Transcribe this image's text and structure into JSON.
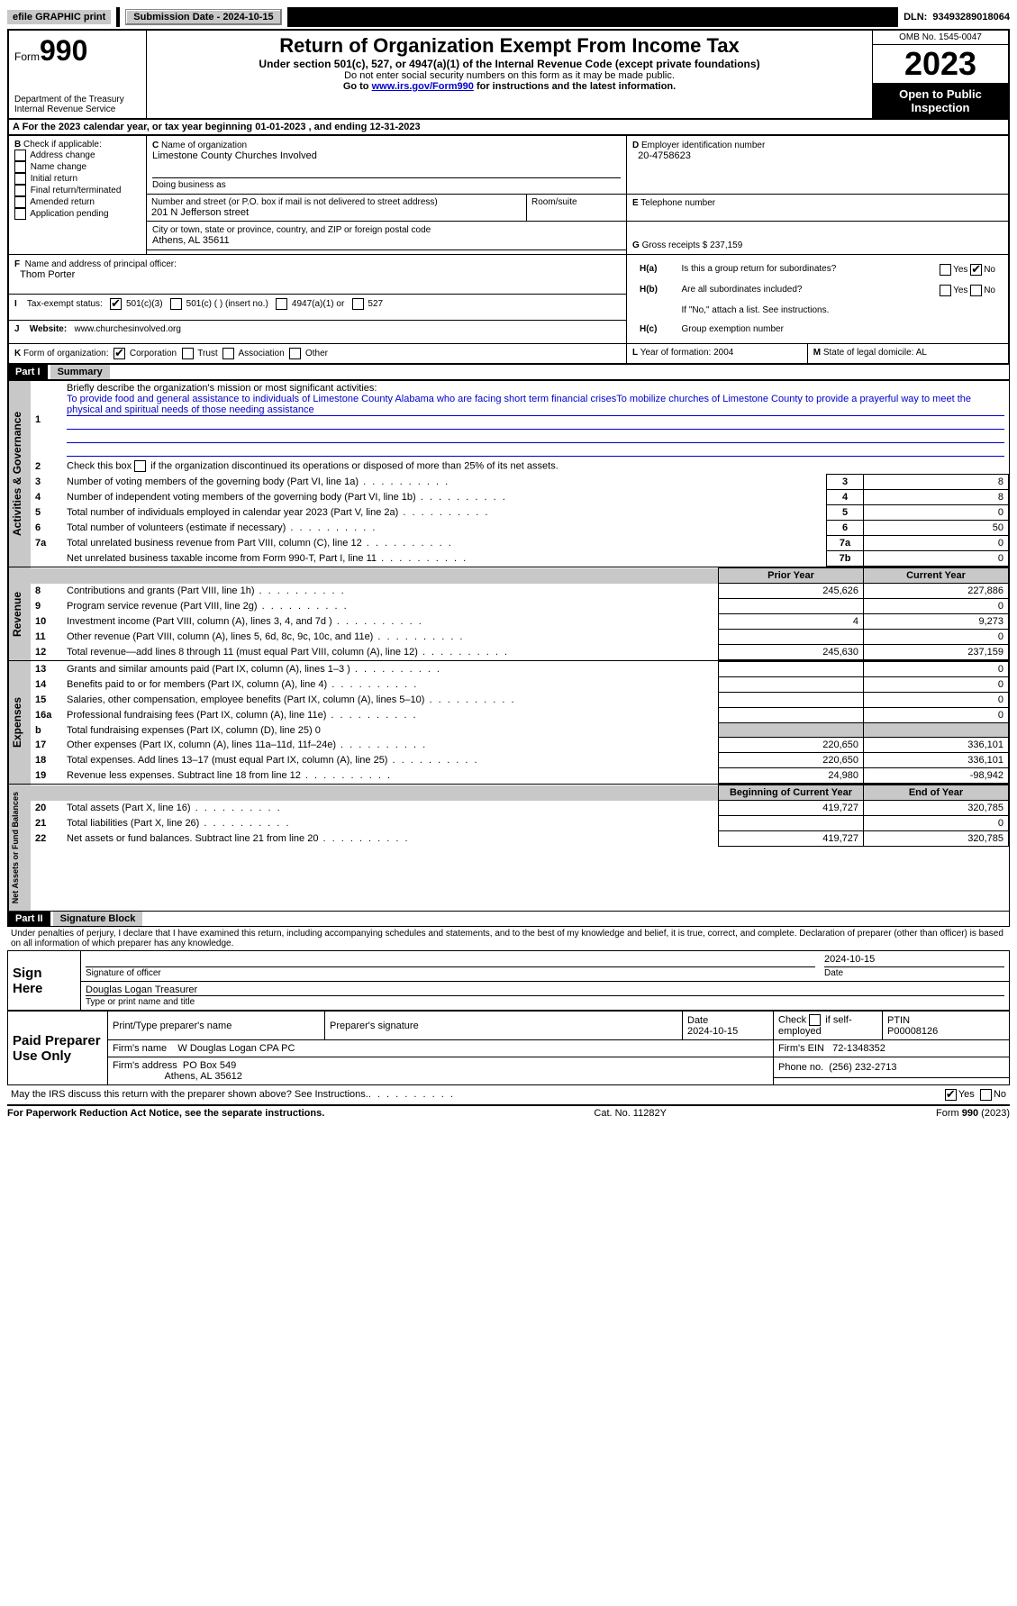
{
  "topbar": {
    "efile_label": "efile GRAPHIC print",
    "submission": "Submission Date - 2024-10-15",
    "dln_label": "DLN:",
    "dln": "93493289018064"
  },
  "header": {
    "form_small": "Form",
    "form_big": "990",
    "dept": "Department of the Treasury",
    "irs": "Internal Revenue Service",
    "title": "Return of Organization Exempt From Income Tax",
    "sub": "Under section 501(c), 527, or 4947(a)(1) of the Internal Revenue Code (except private foundations)",
    "note1": "Do not enter social security numbers on this form as it may be made public.",
    "note2_pre": "Go to ",
    "note2_link": "www.irs.gov/Form990",
    "note2_post": " for instructions and the latest information.",
    "omb": "OMB No. 1545-0047",
    "year": "2023",
    "open": "Open to Public Inspection"
  },
  "A": {
    "text": "For the 2023 calendar year, or tax year beginning ",
    "begin": "01-01-2023",
    "mid": "   , and ending ",
    "end": "12-31-2023"
  },
  "B": {
    "label": "Check if applicable:",
    "items": [
      "Address change",
      "Name change",
      "Initial return",
      "Final return/terminated",
      "Amended return",
      "Application pending"
    ]
  },
  "C": {
    "name_label": "Name of organization",
    "name": "Limestone County Churches Involved",
    "dba_label": "Doing business as",
    "addr_label": "Number and street (or P.O. box if mail is not delivered to street address)",
    "addr": "201 N Jefferson street",
    "room_label": "Room/suite",
    "city_label": "City or town, state or province, country, and ZIP or foreign postal code",
    "city": "Athens, AL  35611"
  },
  "D": {
    "label": "Employer identification number",
    "val": "20-4758623"
  },
  "E": {
    "label": "Telephone number",
    "val": ""
  },
  "G": {
    "label": "Gross receipts $",
    "val": "237,159"
  },
  "F": {
    "label": "Name and address of principal officer:",
    "name": "Thom Porter"
  },
  "H": {
    "a": "Is this a group return for subordinates?",
    "b": "Are all subordinates included?",
    "b_note": "If \"No,\" attach a list. See instructions.",
    "c": "Group exemption number"
  },
  "I": {
    "label": "Tax-exempt status:",
    "opts": [
      "501(c)(3)",
      "501(c) (  ) (insert no.)",
      "4947(a)(1) or",
      "527"
    ]
  },
  "J": {
    "label": "Website:",
    "val": "www.churchesinvolved.org"
  },
  "K": {
    "label": "Form of organization:",
    "opts": [
      "Corporation",
      "Trust",
      "Association",
      "Other"
    ]
  },
  "L": {
    "label": "Year of formation:",
    "val": "2004"
  },
  "M": {
    "label": "State of legal domicile:",
    "val": "AL"
  },
  "part1": {
    "hdr": "Part I",
    "title": "Summary",
    "q1": "Briefly describe the organization's mission or most significant activities:",
    "mission": "To provide food and general assistance to individuals of Limestone County Alabama who are facing short term financial crisesTo mobilize churches of Limestone County to provide a prayerful way to meet the physical and spiritual needs of those needing assistance",
    "q2": "Check this box  if the organization discontinued its operations or disposed of more than 25% of its net assets.",
    "rows_ag": [
      {
        "n": "3",
        "d": "Number of voting members of the governing body (Part VI, line 1a)",
        "box": "3",
        "v": "8"
      },
      {
        "n": "4",
        "d": "Number of independent voting members of the governing body (Part VI, line 1b)",
        "box": "4",
        "v": "8"
      },
      {
        "n": "5",
        "d": "Total number of individuals employed in calendar year 2023 (Part V, line 2a)",
        "box": "5",
        "v": "0"
      },
      {
        "n": "6",
        "d": "Total number of volunteers (estimate if necessary)",
        "box": "6",
        "v": "50"
      },
      {
        "n": "7a",
        "d": "Total unrelated business revenue from Part VIII, column (C), line 12",
        "box": "7a",
        "v": "0"
      },
      {
        "n": "",
        "d": "Net unrelated business taxable income from Form 990-T, Part I, line 11",
        "box": "7b",
        "v": "0"
      }
    ],
    "col_prior": "Prior Year",
    "col_curr": "Current Year",
    "revenue": [
      {
        "n": "8",
        "d": "Contributions and grants (Part VIII, line 1h)",
        "p": "245,626",
        "c": "227,886"
      },
      {
        "n": "9",
        "d": "Program service revenue (Part VIII, line 2g)",
        "p": "",
        "c": "0"
      },
      {
        "n": "10",
        "d": "Investment income (Part VIII, column (A), lines 3, 4, and 7d )",
        "p": "4",
        "c": "9,273"
      },
      {
        "n": "11",
        "d": "Other revenue (Part VIII, column (A), lines 5, 6d, 8c, 9c, 10c, and 11e)",
        "p": "",
        "c": "0"
      },
      {
        "n": "12",
        "d": "Total revenue—add lines 8 through 11 (must equal Part VIII, column (A), line 12)",
        "p": "245,630",
        "c": "237,159"
      }
    ],
    "expenses": [
      {
        "n": "13",
        "d": "Grants and similar amounts paid (Part IX, column (A), lines 1–3 )",
        "p": "",
        "c": "0"
      },
      {
        "n": "14",
        "d": "Benefits paid to or for members (Part IX, column (A), line 4)",
        "p": "",
        "c": "0"
      },
      {
        "n": "15",
        "d": "Salaries, other compensation, employee benefits (Part IX, column (A), lines 5–10)",
        "p": "",
        "c": "0"
      },
      {
        "n": "16a",
        "d": "Professional fundraising fees (Part IX, column (A), line 11e)",
        "p": "",
        "c": "0"
      },
      {
        "n": "b",
        "d": "Total fundraising expenses (Part IX, column (D), line 25) 0",
        "shade": true
      },
      {
        "n": "17",
        "d": "Other expenses (Part IX, column (A), lines 11a–11d, 11f–24e)",
        "p": "220,650",
        "c": "336,101"
      },
      {
        "n": "18",
        "d": "Total expenses. Add lines 13–17 (must equal Part IX, column (A), line 25)",
        "p": "220,650",
        "c": "336,101"
      },
      {
        "n": "19",
        "d": "Revenue less expenses. Subtract line 18 from line 12",
        "p": "24,980",
        "c": "-98,942"
      }
    ],
    "col_begin": "Beginning of Current Year",
    "col_end": "End of Year",
    "netassets": [
      {
        "n": "20",
        "d": "Total assets (Part X, line 16)",
        "p": "419,727",
        "c": "320,785"
      },
      {
        "n": "21",
        "d": "Total liabilities (Part X, line 26)",
        "p": "",
        "c": "0"
      },
      {
        "n": "22",
        "d": "Net assets or fund balances. Subtract line 21 from line 20",
        "p": "419,727",
        "c": "320,785"
      }
    ]
  },
  "part2": {
    "hdr": "Part II",
    "title": "Signature Block",
    "decl": "Under penalties of perjury, I declare that I have examined this return, including accompanying schedules and statements, and to the best of my knowledge and belief, it is true, correct, and complete. Declaration of preparer (other than officer) is based on all information of which preparer has any knowledge.",
    "sign_here": "Sign Here",
    "sig_officer": "Signature of officer",
    "sig_date": "2024-10-15",
    "date_label": "Date",
    "officer_name": "Douglas Logan  Treasurer",
    "type_label": "Type or print name and title",
    "paid": "Paid Preparer Use Only",
    "prep_name_label": "Print/Type preparer's name",
    "prep_sig_label": "Preparer's signature",
    "prep_date_label": "Date",
    "prep_date": "2024-10-15",
    "check_self": "Check  if self-employed",
    "ptin_label": "PTIN",
    "ptin": "P00008126",
    "firm_name_label": "Firm's name",
    "firm_name": "W Douglas Logan CPA PC",
    "firm_ein_label": "Firm's EIN",
    "firm_ein": "72-1348352",
    "firm_addr_label": "Firm's address",
    "firm_addr1": "PO Box 549",
    "firm_addr2": "Athens, AL  35612",
    "phone_label": "Phone no.",
    "phone": "(256) 232-2713",
    "discuss": "May the IRS discuss this return with the preparer shown above? See Instructions."
  },
  "footer": {
    "pra": "For Paperwork Reduction Act Notice, see the separate instructions.",
    "cat": "Cat. No. 11282Y",
    "form": "Form 990 (2023)"
  },
  "yesno": {
    "yes": "Yes",
    "no": "No"
  },
  "vtabs": {
    "ag": "Activities & Governance",
    "rev": "Revenue",
    "exp": "Expenses",
    "na": "Net Assets or Fund Balances"
  }
}
